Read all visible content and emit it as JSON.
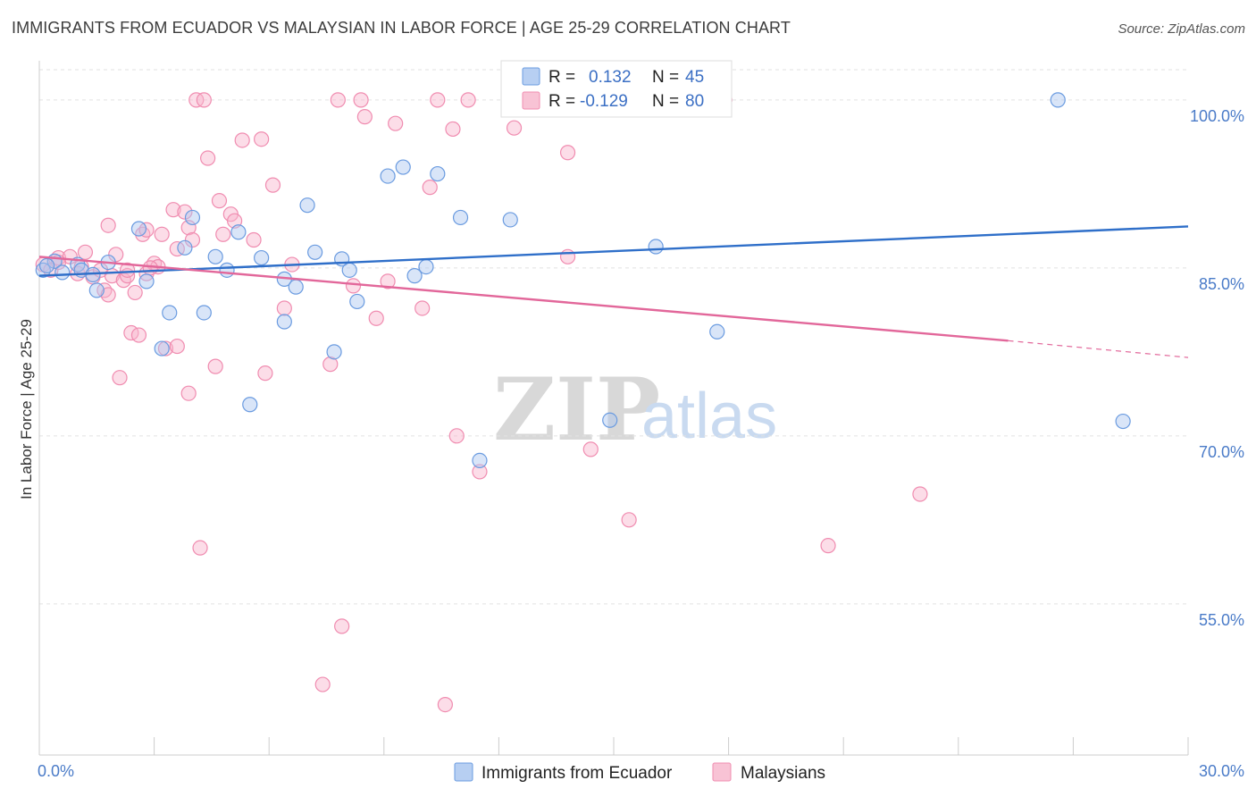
{
  "title": "IMMIGRANTS FROM ECUADOR VS MALAYSIAN IN LABOR FORCE | AGE 25-29 CORRELATION CHART",
  "source": "Source: ZipAtlas.com",
  "watermark": {
    "zip": "ZIP",
    "atlas": "atlas"
  },
  "legend": {
    "r_label": "R =",
    "n_label": "N =",
    "series": [
      {
        "r": "0.132",
        "n": "45"
      },
      {
        "r": "-0.129",
        "n": "80"
      }
    ]
  },
  "chart_data": {
    "type": "scatter",
    "title": "IMMIGRANTS FROM ECUADOR VS MALAYSIAN IN LABOR FORCE | AGE 25-29 CORRELATION CHART",
    "xlabel": "",
    "ylabel": "In Labor Force | Age 25-29",
    "x_tick_labels": [
      "0.0%",
      "30.0%"
    ],
    "y_tick_labels": [
      "100.0%",
      "85.0%",
      "70.0%",
      "55.0%"
    ],
    "y_ticks": [
      100,
      85,
      70,
      55
    ],
    "xlim": [
      0,
      30
    ],
    "ylim": [
      41.5,
      103.5
    ],
    "grid": true,
    "legend_position": "top-center",
    "colors": {
      "ecuador": "#6a9be0",
      "malaysian": "#f08cb0",
      "ecuador_line": "#2f6fc9",
      "malaysian_line": "#e2679a"
    },
    "series": [
      {
        "name": "Immigrants from Ecuador",
        "r": 0.132,
        "n": 45,
        "trend": {
          "x0": 0,
          "y0": 84.3,
          "x1": 30,
          "y1": 88.7
        },
        "points": [
          [
            0.1,
            84.8
          ],
          [
            0.4,
            85.6
          ],
          [
            0.6,
            84.6
          ],
          [
            1.0,
            85.3
          ],
          [
            1.1,
            84.8
          ],
          [
            1.4,
            84.4
          ],
          [
            1.5,
            83.0
          ],
          [
            1.8,
            85.5
          ],
          [
            2.6,
            88.5
          ],
          [
            2.8,
            83.8
          ],
          [
            3.2,
            77.8
          ],
          [
            3.4,
            81.0
          ],
          [
            3.8,
            86.8
          ],
          [
            4.0,
            89.5
          ],
          [
            4.3,
            81.0
          ],
          [
            4.6,
            86.0
          ],
          [
            4.9,
            84.8
          ],
          [
            5.2,
            88.2
          ],
          [
            5.5,
            72.8
          ],
          [
            5.8,
            85.9
          ],
          [
            6.4,
            80.2
          ],
          [
            6.4,
            84.0
          ],
          [
            6.7,
            83.3
          ],
          [
            7.0,
            90.6
          ],
          [
            7.2,
            86.4
          ],
          [
            7.7,
            77.5
          ],
          [
            7.9,
            85.8
          ],
          [
            8.1,
            84.8
          ],
          [
            8.3,
            82.0
          ],
          [
            9.1,
            93.2
          ],
          [
            9.5,
            94.0
          ],
          [
            9.8,
            84.3
          ],
          [
            10.1,
            85.1
          ],
          [
            10.4,
            93.4
          ],
          [
            11.0,
            89.5
          ],
          [
            11.5,
            67.8
          ],
          [
            12.3,
            89.3
          ],
          [
            13.0,
            100.0
          ],
          [
            14.9,
            71.4
          ],
          [
            15.9,
            100.0
          ],
          [
            16.1,
            86.9
          ],
          [
            17.7,
            79.3
          ],
          [
            26.6,
            100.0
          ],
          [
            28.3,
            71.3
          ],
          [
            0.2,
            85.2
          ]
        ]
      },
      {
        "name": "Malaysians",
        "r": -0.129,
        "n": 80,
        "trend": {
          "x0": 0,
          "y0": 86.0,
          "x1": 25.3,
          "y1": 78.5,
          "x2": 30,
          "y2": 77.0
        },
        "points": [
          [
            0.1,
            85.3
          ],
          [
            0.3,
            84.8
          ],
          [
            0.5,
            85.9
          ],
          [
            0.8,
            86.0
          ],
          [
            1.0,
            84.5
          ],
          [
            1.1,
            85.1
          ],
          [
            1.2,
            86.4
          ],
          [
            1.4,
            84.2
          ],
          [
            1.6,
            84.8
          ],
          [
            1.7,
            83.0
          ],
          [
            1.8,
            82.6
          ],
          [
            1.8,
            88.8
          ],
          [
            1.9,
            84.3
          ],
          [
            2.0,
            86.2
          ],
          [
            2.1,
            75.2
          ],
          [
            2.2,
            83.9
          ],
          [
            2.3,
            84.3
          ],
          [
            2.3,
            84.8
          ],
          [
            2.4,
            79.2
          ],
          [
            2.5,
            82.8
          ],
          [
            2.6,
            79.0
          ],
          [
            2.7,
            88.0
          ],
          [
            2.8,
            84.5
          ],
          [
            2.8,
            88.4
          ],
          [
            3.0,
            85.4
          ],
          [
            3.1,
            85.1
          ],
          [
            3.2,
            88.0
          ],
          [
            3.3,
            77.8
          ],
          [
            3.5,
            90.2
          ],
          [
            3.6,
            86.7
          ],
          [
            3.6,
            78.0
          ],
          [
            3.8,
            90.0
          ],
          [
            3.9,
            88.6
          ],
          [
            3.9,
            73.8
          ],
          [
            4.0,
            87.5
          ],
          [
            4.1,
            100.0
          ],
          [
            4.2,
            60.0
          ],
          [
            4.3,
            100.0
          ],
          [
            4.4,
            94.8
          ],
          [
            4.6,
            76.2
          ],
          [
            4.7,
            91.0
          ],
          [
            4.8,
            88.0
          ],
          [
            5.0,
            89.8
          ],
          [
            5.1,
            89.2
          ],
          [
            5.3,
            96.4
          ],
          [
            5.6,
            87.5
          ],
          [
            5.8,
            96.5
          ],
          [
            5.9,
            75.6
          ],
          [
            6.1,
            92.4
          ],
          [
            6.4,
            81.4
          ],
          [
            6.6,
            85.3
          ],
          [
            7.4,
            47.8
          ],
          [
            7.6,
            76.4
          ],
          [
            7.8,
            100.0
          ],
          [
            7.9,
            53.0
          ],
          [
            8.2,
            83.4
          ],
          [
            8.4,
            100.0
          ],
          [
            8.5,
            98.5
          ],
          [
            8.8,
            80.5
          ],
          [
            9.1,
            83.8
          ],
          [
            9.3,
            97.9
          ],
          [
            10.0,
            81.4
          ],
          [
            10.2,
            92.2
          ],
          [
            10.4,
            100.0
          ],
          [
            10.6,
            46.0
          ],
          [
            10.8,
            97.4
          ],
          [
            10.9,
            70.0
          ],
          [
            11.2,
            100.0
          ],
          [
            11.5,
            66.8
          ],
          [
            12.4,
            97.5
          ],
          [
            13.6,
            100.0
          ],
          [
            13.8,
            95.3
          ],
          [
            13.8,
            86.0
          ],
          [
            14.4,
            68.8
          ],
          [
            15.4,
            62.5
          ],
          [
            17.9,
            100.0
          ],
          [
            20.6,
            60.2
          ],
          [
            23.0,
            64.8
          ],
          [
            0.5,
            85.5
          ],
          [
            2.9,
            85.0
          ]
        ]
      }
    ]
  },
  "bottom_legend": [
    {
      "label": "Immigrants from Ecuador"
    },
    {
      "label": "Malaysians"
    }
  ]
}
